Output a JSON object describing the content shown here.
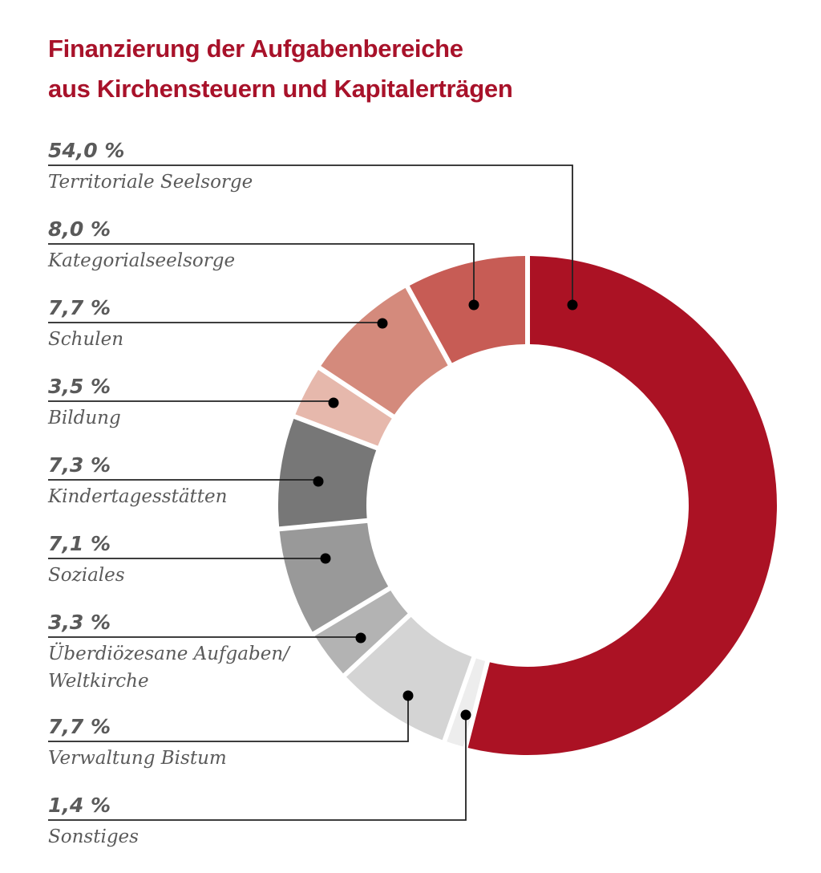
{
  "title": {
    "line1": "Finanzierung der Aufgabenbereiche",
    "line2": "aus Kirchensteuern und Kapitalerträgen"
  },
  "chart_data": {
    "type": "pie",
    "variant": "donut",
    "title": "Finanzierung der Aufgabenbereiche aus Kirchensteuern und Kapitalerträgen",
    "unit": "%",
    "legend": "left",
    "slices": [
      {
        "label": "Territoriale Seelsorge",
        "value": 54.0,
        "display": "54,0 %",
        "color": "#ab1224"
      },
      {
        "label": "Sonstiges",
        "value": 1.4,
        "display": "1,4 %",
        "color": "#ededed"
      },
      {
        "label": "Verwaltung Bistum",
        "value": 7.7,
        "display": "7,7 %",
        "color": "#d4d4d4"
      },
      {
        "label": "Überdiözesane Aufgaben/ Weltkirche",
        "label_lines": [
          "Überdiözesane Aufgaben/",
          "Weltkirche"
        ],
        "value": 3.3,
        "display": "3,3 %",
        "color": "#b3b3b3"
      },
      {
        "label": "Soziales",
        "value": 7.1,
        "display": "7,1 %",
        "color": "#999999"
      },
      {
        "label": "Kindertagesstätten",
        "value": 7.3,
        "display": "7,3 %",
        "color": "#777777"
      },
      {
        "label": "Bildung",
        "value": 3.5,
        "display": "3,5 %",
        "color": "#e6b8ac"
      },
      {
        "label": "Schulen",
        "value": 7.7,
        "display": "7,7 %",
        "color": "#d48a7c"
      },
      {
        "label": "Kategorialseelsorge",
        "value": 8.0,
        "display": "8,0 %",
        "color": "#c75c55"
      }
    ],
    "legend_order": [
      "Territoriale Seelsorge",
      "Kategorialseelsorge",
      "Schulen",
      "Bildung",
      "Kindertagesstätten",
      "Soziales",
      "Überdiözesane Aufgaben/ Weltkirche",
      "Verwaltung Bistum",
      "Sonstiges"
    ],
    "start": "top",
    "direction": "clockwise"
  }
}
